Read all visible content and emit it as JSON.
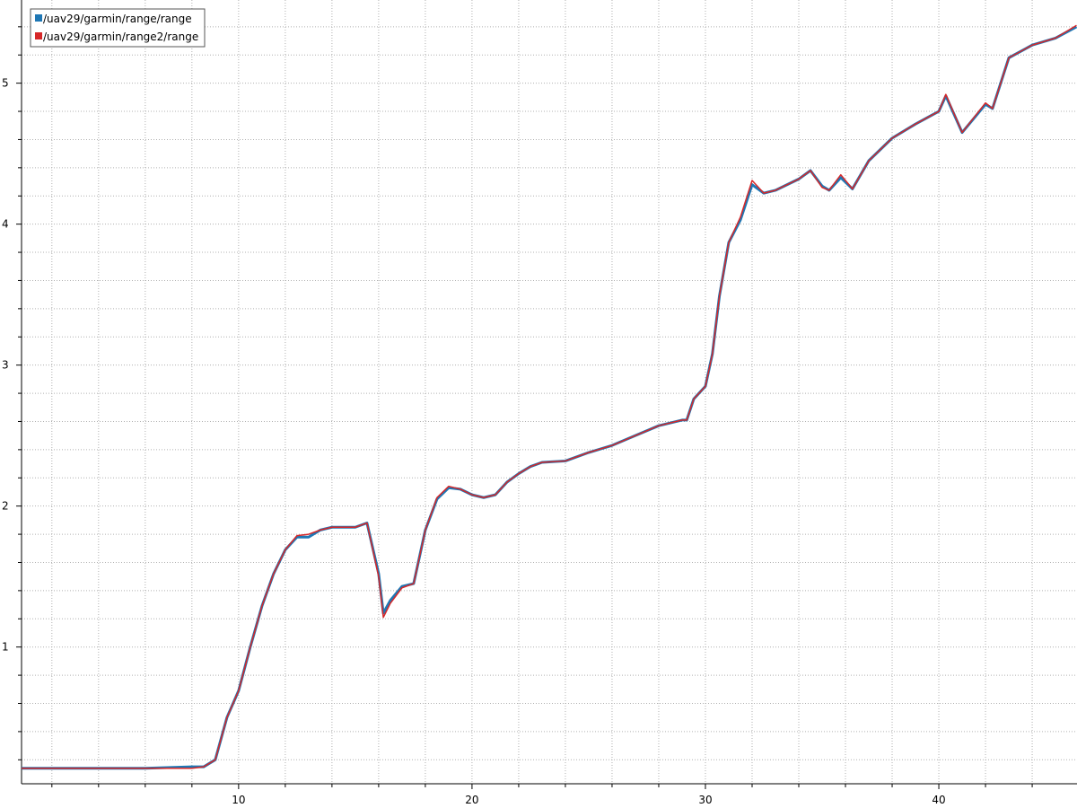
{
  "chart_data": {
    "type": "line",
    "x": [
      0.7,
      2,
      4,
      6,
      8,
      8.5,
      9,
      9.5,
      10,
      10.5,
      11,
      11.5,
      12,
      12.5,
      13,
      13.5,
      14,
      15,
      15.5,
      16,
      16.2,
      16.5,
      17,
      17.5,
      18,
      18.5,
      19,
      19.5,
      20,
      20.5,
      21,
      21.5,
      22,
      22.5,
      23,
      24,
      25,
      26,
      27,
      28,
      29,
      29.2,
      29.5,
      30,
      30.3,
      30.6,
      31,
      31.5,
      32,
      32.5,
      33,
      34,
      34.5,
      35,
      35.3,
      35.8,
      36.3,
      37,
      38,
      39,
      40,
      40.3,
      41,
      42,
      42.3,
      43,
      44,
      45,
      45.9
    ],
    "series": [
      {
        "name": "/uav29/garmin/range/range",
        "color": "#1f77b4",
        "values": [
          0.14,
          0.14,
          0.14,
          0.14,
          0.15,
          0.15,
          0.2,
          0.5,
          0.69,
          1.0,
          1.29,
          1.52,
          1.69,
          1.78,
          1.78,
          1.83,
          1.85,
          1.85,
          1.88,
          1.52,
          1.24,
          1.33,
          1.43,
          1.45,
          1.83,
          2.05,
          2.13,
          2.12,
          2.08,
          2.06,
          2.08,
          2.17,
          2.23,
          2.28,
          2.31,
          2.32,
          2.38,
          2.43,
          2.5,
          2.57,
          2.61,
          2.61,
          2.76,
          2.85,
          3.08,
          3.49,
          3.87,
          4.03,
          4.28,
          4.22,
          4.24,
          4.32,
          4.38,
          4.27,
          4.24,
          4.33,
          4.25,
          4.45,
          4.61,
          4.71,
          4.8,
          4.91,
          4.65,
          4.85,
          4.82,
          5.18,
          5.27,
          5.32,
          5.4
        ]
      },
      {
        "name": "/uav29/garmin/range2/range",
        "color": "#d62728",
        "values": [
          0.14,
          0.14,
          0.14,
          0.14,
          0.14,
          0.15,
          0.2,
          0.5,
          0.69,
          1.0,
          1.29,
          1.52,
          1.69,
          1.79,
          1.8,
          1.83,
          1.85,
          1.85,
          1.88,
          1.5,
          1.21,
          1.31,
          1.42,
          1.45,
          1.83,
          2.06,
          2.14,
          2.12,
          2.08,
          2.06,
          2.08,
          2.17,
          2.23,
          2.28,
          2.31,
          2.32,
          2.38,
          2.43,
          2.5,
          2.57,
          2.61,
          2.61,
          2.76,
          2.85,
          3.08,
          3.49,
          3.87,
          4.05,
          4.31,
          4.22,
          4.24,
          4.32,
          4.38,
          4.26,
          4.24,
          4.35,
          4.25,
          4.45,
          4.61,
          4.71,
          4.8,
          4.92,
          4.65,
          4.86,
          4.82,
          5.18,
          5.27,
          5.32,
          5.41
        ]
      }
    ],
    "xlim": [
      0.7,
      45.92
    ],
    "ylim": [
      0.03,
      5.59
    ],
    "xticks": [
      10,
      20,
      30,
      40
    ],
    "yticks": [
      1,
      2,
      3,
      4,
      5
    ],
    "xminor_ticks": [
      2,
      4,
      6,
      8,
      12,
      14,
      16,
      18,
      22,
      24,
      26,
      28,
      32,
      34,
      36,
      38,
      42,
      44
    ],
    "yminor_ticks": [
      0.2,
      0.4,
      0.6,
      0.8,
      1.2,
      1.4,
      1.6,
      1.8,
      2.2,
      2.4,
      2.6,
      2.8,
      3.2,
      3.4,
      3.6,
      3.8,
      4.2,
      4.4,
      4.6,
      4.8,
      5.2,
      5.4
    ],
    "grid": true,
    "legend": "upper-left"
  }
}
